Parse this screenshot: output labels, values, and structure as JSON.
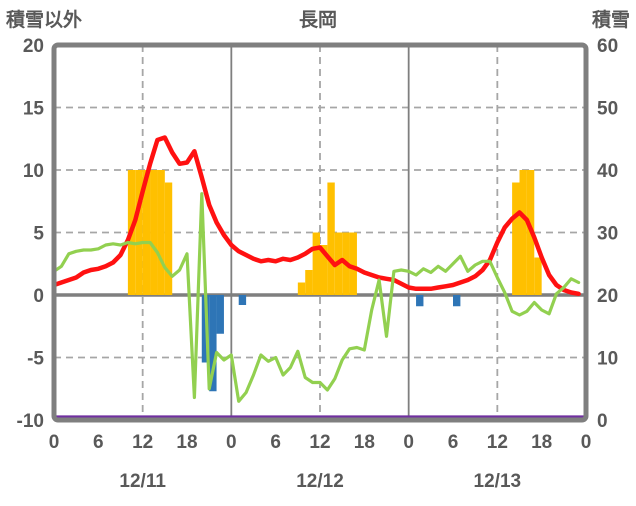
{
  "chart_data": {
    "type": "combo",
    "title": "長岡",
    "left_axis": {
      "label": "積雪以外",
      "min": -10,
      "max": 20,
      "ticks": [
        20,
        15,
        10,
        5,
        0,
        -5,
        -10
      ],
      "dashed_gridline_values": [
        15,
        10,
        5,
        -5
      ],
      "zero_line_value": 0
    },
    "right_axis": {
      "label": "積雪",
      "min": 0,
      "max": 60,
      "ticks": [
        60,
        50,
        40,
        30,
        20,
        10,
        0
      ]
    },
    "x_axis": {
      "hours_total": 72,
      "tick_interval_hours": 6,
      "tick_labels": [
        "0",
        "6",
        "12",
        "18",
        "0",
        "6",
        "12",
        "18",
        "0",
        "6",
        "12",
        "18",
        "0"
      ],
      "day_labels": [
        "12/11",
        "12/12",
        "12/13"
      ],
      "day_label_center_hours": [
        12,
        36,
        60
      ],
      "solid_gridline_hours": [
        24,
        48
      ],
      "dashed_gridline_hours": [
        12,
        36,
        60
      ]
    },
    "series": [
      {
        "name": "bars-orange",
        "type": "bar",
        "axis": "left",
        "color": "#FFC000",
        "points": [
          [
            10,
            10
          ],
          [
            11,
            10
          ],
          [
            12,
            10
          ],
          [
            13,
            10
          ],
          [
            14,
            10
          ],
          [
            15,
            9
          ],
          [
            33,
            1
          ],
          [
            34,
            2
          ],
          [
            35,
            5
          ],
          [
            36,
            4
          ],
          [
            37,
            9
          ],
          [
            38,
            5
          ],
          [
            39,
            5
          ],
          [
            40,
            5
          ],
          [
            62,
            9
          ],
          [
            63,
            10
          ],
          [
            64,
            10
          ],
          [
            65,
            3
          ]
        ]
      },
      {
        "name": "bars-blue",
        "type": "bar",
        "axis": "left",
        "color": "#2E75B6",
        "points": [
          [
            20,
            -5.4
          ],
          [
            21,
            -7.7
          ],
          [
            22,
            -3.1
          ],
          [
            25,
            -0.8
          ],
          [
            49,
            -0.9
          ],
          [
            54,
            -0.9
          ]
        ]
      },
      {
        "name": "line-red",
        "type": "line",
        "axis": "left",
        "color": "#FF1111",
        "stroke_width": 4.5,
        "values": [
          0.8,
          1.0,
          1.2,
          1.4,
          1.8,
          2.0,
          2.1,
          2.3,
          2.6,
          3.2,
          4.4,
          6.0,
          8.3,
          10.5,
          12.4,
          12.6,
          11.4,
          10.5,
          10.6,
          11.5,
          9.4,
          7.2,
          5.8,
          4.8,
          4.0,
          3.5,
          3.2,
          2.9,
          2.7,
          2.8,
          2.7,
          2.9,
          2.8,
          3.0,
          3.3,
          3.7,
          3.8,
          3.1,
          2.4,
          2.8,
          2.3,
          2.1,
          1.8,
          1.6,
          1.4,
          1.3,
          1.2,
          0.9,
          0.6,
          0.5,
          0.5,
          0.5,
          0.6,
          0.7,
          0.8,
          1.0,
          1.2,
          1.5,
          2.0,
          2.8,
          4.2,
          5.4,
          6.1,
          6.6,
          6.0,
          4.6,
          3.0,
          1.6,
          0.8,
          0.4,
          0.2,
          0.1
        ]
      },
      {
        "name": "line-green",
        "type": "line",
        "axis": "left",
        "color": "#92D050",
        "stroke_width": 3.2,
        "values": [
          1.9,
          2.3,
          3.3,
          3.5,
          3.6,
          3.6,
          3.7,
          4.0,
          4.1,
          4.0,
          4.2,
          4.1,
          4.2,
          4.2,
          3.4,
          2.2,
          1.5,
          2.0,
          3.3,
          -8.2,
          8.1,
          -7.5,
          -4.6,
          -5.2,
          -4.8,
          -8.5,
          -7.8,
          -6.4,
          -4.8,
          -5.3,
          -5.0,
          -6.4,
          -5.8,
          -4.5,
          -6.6,
          -7.0,
          -7.0,
          -7.6,
          -6.7,
          -5.2,
          -4.3,
          -4.2,
          -4.4,
          -1.2,
          1.2,
          -3.3,
          1.9,
          2.0,
          1.9,
          1.6,
          2.1,
          1.8,
          2.3,
          1.9,
          2.5,
          3.1,
          1.9,
          2.4,
          2.7,
          2.7,
          1.4,
          0.2,
          -1.3,
          -1.6,
          -1.3,
          -0.6,
          -1.2,
          -1.5,
          0.1,
          0.6,
          1.3,
          1.0
        ]
      },
      {
        "name": "line-purple",
        "type": "line",
        "axis": "right",
        "color": "#7030A0",
        "stroke_width": 3,
        "constant": 0.5
      }
    ],
    "colors": {
      "frame": "#7F7F7F",
      "grid": "#A6A6A6",
      "text": "#595959"
    }
  }
}
